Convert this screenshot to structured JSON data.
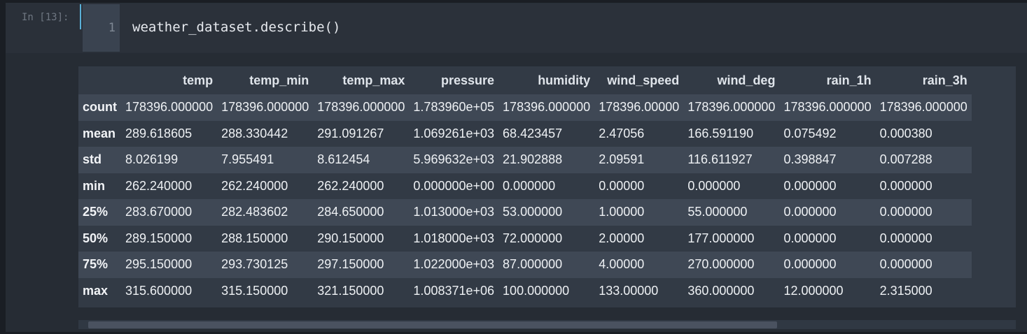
{
  "cell": {
    "prompt": "In [13]:",
    "line_number": "1",
    "code": "weather_dataset.describe()"
  },
  "table": {
    "columns": [
      "",
      "temp",
      "temp_min",
      "temp_max",
      "pressure",
      "humidity",
      "wind_speed",
      "wind_deg",
      "rain_1h",
      "rain_3h"
    ],
    "rows": [
      {
        "label": "count",
        "values": [
          "178396.000000",
          "178396.000000",
          "178396.000000",
          "1.783960e+05",
          "178396.000000",
          "178396.00000",
          "178396.000000",
          "178396.000000",
          "178396.000000"
        ]
      },
      {
        "label": "mean",
        "values": [
          "289.618605",
          "288.330442",
          "291.091267",
          "1.069261e+03",
          "68.423457",
          "2.47056",
          "166.591190",
          "0.075492",
          "0.000380"
        ]
      },
      {
        "label": "std",
        "values": [
          "8.026199",
          "7.955491",
          "8.612454",
          "5.969632e+03",
          "21.902888",
          "2.09591",
          "116.611927",
          "0.398847",
          "0.007288"
        ]
      },
      {
        "label": "min",
        "values": [
          "262.240000",
          "262.240000",
          "262.240000",
          "0.000000e+00",
          "0.000000",
          "0.00000",
          "0.000000",
          "0.000000",
          "0.000000"
        ]
      },
      {
        "label": "25%",
        "values": [
          "283.670000",
          "282.483602",
          "284.650000",
          "1.013000e+03",
          "53.000000",
          "1.00000",
          "55.000000",
          "0.000000",
          "0.000000"
        ]
      },
      {
        "label": "50%",
        "values": [
          "289.150000",
          "288.150000",
          "290.150000",
          "1.018000e+03",
          "72.000000",
          "2.00000",
          "177.000000",
          "0.000000",
          "0.000000"
        ]
      },
      {
        "label": "75%",
        "values": [
          "295.150000",
          "293.730125",
          "297.150000",
          "1.022000e+03",
          "87.000000",
          "4.00000",
          "270.000000",
          "0.000000",
          "0.000000"
        ]
      },
      {
        "label": "max",
        "values": [
          "315.600000",
          "315.150000",
          "321.150000",
          "1.008371e+06",
          "100.000000",
          "133.00000",
          "360.000000",
          "12.000000",
          "2.315000"
        ]
      }
    ]
  },
  "colors": {
    "active_indicator": "#5ab0d8",
    "background": "#2a3039",
    "striped_row": "#3f4855"
  }
}
